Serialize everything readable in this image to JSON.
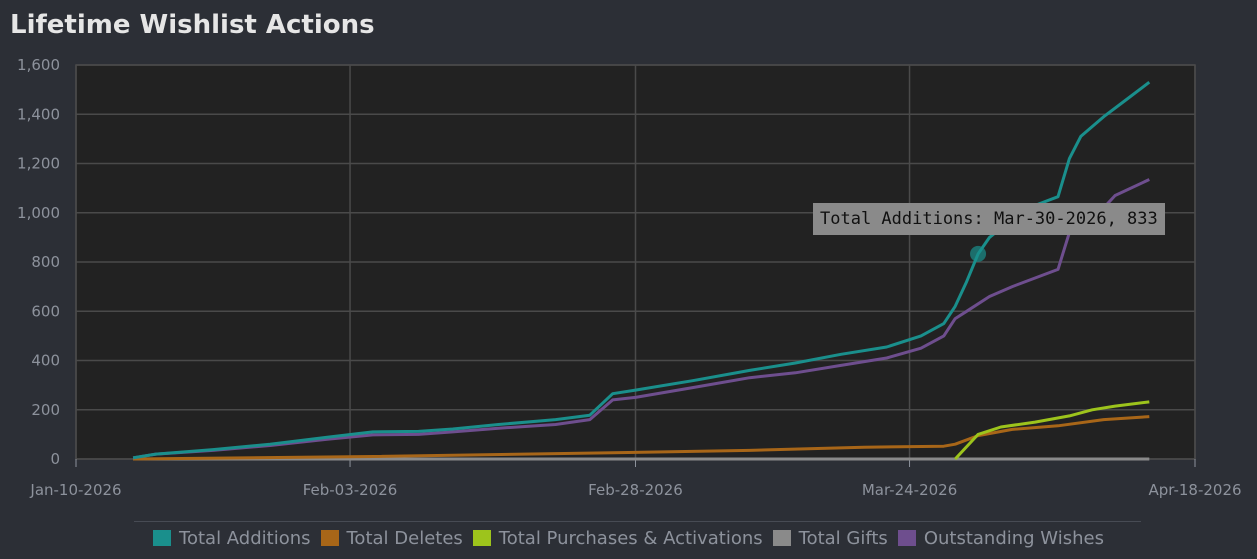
{
  "title": "Lifetime Wishlist Actions",
  "tooltip": {
    "text": "Total Additions: Mar-30-2026, 833",
    "series": "Total Additions",
    "x": "2026-03-30",
    "y": 833
  },
  "colors": {
    "background": "#2c2f36",
    "plot_background": "#222222",
    "grid": "#4a4a4a"
  },
  "chart_data": {
    "type": "line",
    "title": "Lifetime Wishlist Actions",
    "xlabel": "",
    "ylabel": "",
    "x_axis_type": "date",
    "xlim": [
      "2026-01-10",
      "2026-04-18"
    ],
    "ylim": [
      0,
      1600
    ],
    "x_ticks": [
      "Jan-10-2026",
      "Feb-03-2026",
      "Feb-28-2026",
      "Mar-24-2026",
      "Apr-18-2026"
    ],
    "x_tick_dates": [
      "2026-01-10",
      "2026-02-03",
      "2026-02-28",
      "2026-03-24",
      "2026-04-18"
    ],
    "y_ticks": [
      "0",
      "200",
      "400",
      "600",
      "800",
      "1,000",
      "1,200",
      "1,400",
      "1,600"
    ],
    "y_tick_values": [
      0,
      200,
      400,
      600,
      800,
      1000,
      1200,
      1400,
      1600
    ],
    "grid": true,
    "legend_position": "bottom",
    "series": [
      {
        "name": "Total Additions",
        "color": "#1a8f8c",
        "points": [
          [
            "2026-01-15",
            5
          ],
          [
            "2026-01-17",
            20
          ],
          [
            "2026-01-22",
            38
          ],
          [
            "2026-01-27",
            60
          ],
          [
            "2026-02-01",
            88
          ],
          [
            "2026-02-05",
            110
          ],
          [
            "2026-02-09",
            112
          ],
          [
            "2026-02-12",
            122
          ],
          [
            "2026-02-16",
            140
          ],
          [
            "2026-02-21",
            160
          ],
          [
            "2026-02-24",
            178
          ],
          [
            "2026-02-26",
            265
          ],
          [
            "2026-02-28",
            280
          ],
          [
            "2026-03-05",
            318
          ],
          [
            "2026-03-10",
            360
          ],
          [
            "2026-03-14",
            390
          ],
          [
            "2026-03-18",
            425
          ],
          [
            "2026-03-22",
            455
          ],
          [
            "2026-03-25",
            500
          ],
          [
            "2026-03-27",
            550
          ],
          [
            "2026-03-28",
            620
          ],
          [
            "2026-03-29",
            720
          ],
          [
            "2026-03-30",
            833
          ],
          [
            "2026-03-31",
            900
          ],
          [
            "2026-04-02",
            975
          ],
          [
            "2026-04-04",
            1030
          ],
          [
            "2026-04-06",
            1065
          ],
          [
            "2026-04-07",
            1220
          ],
          [
            "2026-04-08",
            1310
          ],
          [
            "2026-04-10",
            1390
          ],
          [
            "2026-04-12",
            1460
          ],
          [
            "2026-04-14",
            1530
          ]
        ]
      },
      {
        "name": "Total Deletes",
        "color": "#a86618",
        "points": [
          [
            "2026-01-15",
            0
          ],
          [
            "2026-02-05",
            10
          ],
          [
            "2026-02-26",
            25
          ],
          [
            "2026-03-10",
            35
          ],
          [
            "2026-03-20",
            48
          ],
          [
            "2026-03-27",
            52
          ],
          [
            "2026-03-28",
            60
          ],
          [
            "2026-03-30",
            95
          ],
          [
            "2026-04-02",
            120
          ],
          [
            "2026-04-06",
            135
          ],
          [
            "2026-04-10",
            160
          ],
          [
            "2026-04-14",
            172
          ]
        ]
      },
      {
        "name": "Total Purchases & Activations",
        "color": "#9dc41c",
        "points": [
          [
            "2026-03-28",
            0
          ],
          [
            "2026-03-30",
            100
          ],
          [
            "2026-04-01",
            130
          ],
          [
            "2026-04-04",
            150
          ],
          [
            "2026-04-07",
            175
          ],
          [
            "2026-04-09",
            200
          ],
          [
            "2026-04-11",
            215
          ],
          [
            "2026-04-14",
            232
          ]
        ]
      },
      {
        "name": "Total Gifts",
        "color": "#8a8a8a",
        "points": [
          [
            "2026-01-15",
            0
          ],
          [
            "2026-04-14",
            0
          ]
        ]
      },
      {
        "name": "Outstanding Wishes",
        "color": "#6e4e8e",
        "points": [
          [
            "2026-01-15",
            5
          ],
          [
            "2026-01-17",
            20
          ],
          [
            "2026-01-22",
            35
          ],
          [
            "2026-01-27",
            55
          ],
          [
            "2026-02-01",
            80
          ],
          [
            "2026-02-05",
            98
          ],
          [
            "2026-02-09",
            100
          ],
          [
            "2026-02-12",
            110
          ],
          [
            "2026-02-16",
            125
          ],
          [
            "2026-02-21",
            140
          ],
          [
            "2026-02-24",
            160
          ],
          [
            "2026-02-26",
            240
          ],
          [
            "2026-02-28",
            250
          ],
          [
            "2026-03-05",
            290
          ],
          [
            "2026-03-10",
            330
          ],
          [
            "2026-03-14",
            350
          ],
          [
            "2026-03-18",
            380
          ],
          [
            "2026-03-22",
            410
          ],
          [
            "2026-03-25",
            450
          ],
          [
            "2026-03-27",
            500
          ],
          [
            "2026-03-28",
            570
          ],
          [
            "2026-03-29",
            600
          ],
          [
            "2026-03-31",
            660
          ],
          [
            "2026-04-02",
            700
          ],
          [
            "2026-04-04",
            735
          ],
          [
            "2026-04-06",
            770
          ],
          [
            "2026-04-07",
            920
          ],
          [
            "2026-04-09",
            980
          ],
          [
            "2026-04-10",
            1020
          ],
          [
            "2026-04-11",
            1070
          ],
          [
            "2026-04-14",
            1135
          ]
        ]
      }
    ]
  }
}
